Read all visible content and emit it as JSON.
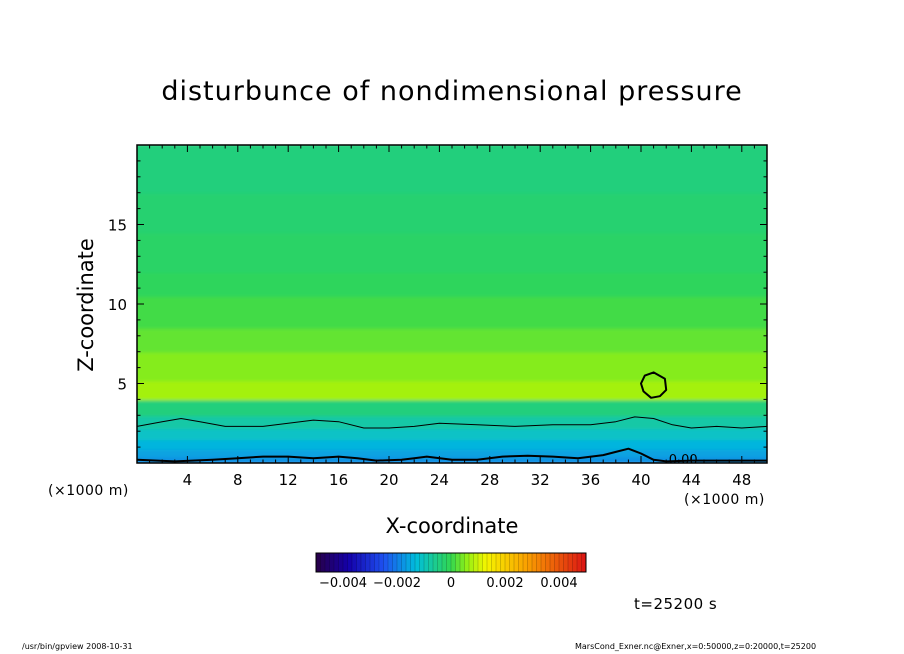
{
  "chart_data": {
    "type": "heatmap",
    "title": "disturbunce of nondimensional pressure",
    "xlabel": "X-coordinate",
    "ylabel": "Z-coordinate",
    "x_unit": "(×1000 m)",
    "y_unit": "(×1000 m)",
    "xlim": [
      0,
      50
    ],
    "ylim": [
      0,
      20
    ],
    "x_ticks": [
      4,
      8,
      12,
      16,
      20,
      24,
      28,
      32,
      36,
      40,
      44,
      48
    ],
    "y_ticks": [
      5,
      10,
      15
    ],
    "colorbar": {
      "range": [
        -0.005,
        0.005
      ],
      "tick_values": [
        -0.004,
        -0.002,
        0,
        0.002,
        0.004
      ],
      "tick_labels": [
        "−0.004",
        "−0.002",
        "0",
        "0.002",
        "0.004"
      ]
    },
    "layers": [
      {
        "z_top": 0.4,
        "value": -0.0018
      },
      {
        "z_top": 0.9,
        "value": -0.0016
      },
      {
        "z_top": 1.5,
        "value": -0.0014
      },
      {
        "z_top": 2.2,
        "value": -0.0011
      },
      {
        "z_top": 3.0,
        "value": -0.0008
      },
      {
        "z_top": 4.0,
        "value": -0.0004
      },
      {
        "z_top": 5.2,
        "value": 0.0007
      },
      {
        "z_top": 7.0,
        "value": 0.0005
      },
      {
        "z_top": 8.5,
        "value": 0.0003
      },
      {
        "z_top": 10.5,
        "value": 0.0001
      },
      {
        "z_top": 12.0,
        "value": -0.0001
      },
      {
        "z_top": 14.5,
        "value": -0.0002
      },
      {
        "z_top": 17.0,
        "value": -0.0003
      },
      {
        "z_top": 20.0,
        "value": -0.0004
      }
    ],
    "contour_label": "0.00",
    "contours": [
      {
        "name": "contour-upper",
        "width": 1,
        "points": [
          [
            0,
            2.3
          ],
          [
            2,
            2.6
          ],
          [
            3.5,
            2.8
          ],
          [
            5,
            2.6
          ],
          [
            7,
            2.3
          ],
          [
            10,
            2.3
          ],
          [
            12,
            2.5
          ],
          [
            14,
            2.7
          ],
          [
            16,
            2.6
          ],
          [
            18,
            2.2
          ],
          [
            20,
            2.2
          ],
          [
            22,
            2.3
          ],
          [
            24,
            2.5
          ],
          [
            27,
            2.4
          ],
          [
            30,
            2.3
          ],
          [
            33,
            2.4
          ],
          [
            36,
            2.4
          ],
          [
            38,
            2.6
          ],
          [
            39.5,
            2.9
          ],
          [
            41,
            2.8
          ],
          [
            42.5,
            2.4
          ],
          [
            44,
            2.2
          ],
          [
            46,
            2.3
          ],
          [
            48,
            2.2
          ],
          [
            50,
            2.3
          ]
        ]
      },
      {
        "name": "contour-zero",
        "width": 2,
        "points": [
          [
            0,
            0.2
          ],
          [
            3,
            0.1
          ],
          [
            6,
            0.2
          ],
          [
            8,
            0.3
          ],
          [
            10,
            0.4
          ],
          [
            12,
            0.4
          ],
          [
            14,
            0.3
          ],
          [
            16,
            0.4
          ],
          [
            17.5,
            0.3
          ],
          [
            19,
            0.15
          ],
          [
            21,
            0.2
          ],
          [
            22,
            0.3
          ],
          [
            23,
            0.4
          ],
          [
            25,
            0.2
          ],
          [
            27,
            0.2
          ],
          [
            29,
            0.4
          ],
          [
            31,
            0.45
          ],
          [
            33,
            0.4
          ],
          [
            35,
            0.3
          ],
          [
            37,
            0.5
          ],
          [
            38,
            0.7
          ],
          [
            39,
            0.9
          ],
          [
            40,
            0.6
          ],
          [
            41,
            0.2
          ],
          [
            42,
            0.1
          ],
          [
            44,
            0.15
          ],
          [
            50,
            0.15
          ]
        ]
      },
      {
        "name": "contour-cell",
        "width": 2,
        "closed": true,
        "points": [
          [
            41.0,
            5.7
          ],
          [
            40.3,
            5.5
          ],
          [
            40.0,
            5.0
          ],
          [
            40.2,
            4.5
          ],
          [
            40.8,
            4.1
          ],
          [
            41.5,
            4.2
          ],
          [
            42.0,
            4.6
          ],
          [
            41.9,
            5.3
          ]
        ]
      }
    ]
  },
  "time_label": "t=25200 s",
  "footer_left": "/usr/bin/gpview   2008-10-31",
  "footer_right": "MarsCond_Exner.nc@Exner,x=0:50000,z=0:20000,t=25200"
}
